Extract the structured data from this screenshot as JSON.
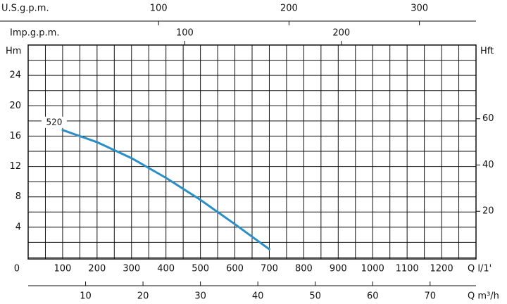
{
  "chart_data": {
    "type": "line",
    "x_label": "Q l/1'",
    "y_label": "Hm",
    "y2_label": "Hft",
    "xlim": [
      0,
      1300
    ],
    "xticks": [
      0,
      100,
      200,
      300,
      400,
      500,
      600,
      700,
      800,
      900,
      1000,
      1100,
      1200
    ],
    "xgrid": [
      0,
      50,
      100,
      150,
      200,
      250,
      300,
      350,
      400,
      450,
      500,
      550,
      600,
      650,
      700,
      750,
      800,
      850,
      900,
      950,
      1000,
      1050,
      1100,
      1150,
      1200,
      1250,
      1300
    ],
    "ylim": [
      0,
      28
    ],
    "yticks": [
      4,
      8,
      12,
      16,
      20,
      24
    ],
    "ygrid": [
      0,
      2,
      4,
      6,
      8,
      10,
      12,
      14,
      16,
      18,
      20,
      22,
      24,
      26,
      28
    ],
    "y2lim": [
      0,
      91.86
    ],
    "y2ticks": [
      20,
      40,
      60
    ],
    "series": [
      {
        "name": "520",
        "color": "#2a8fc6",
        "x": [
          100,
          200,
          300,
          400,
          500,
          600,
          700
        ],
        "values": [
          16.8,
          15.2,
          13.1,
          10.5,
          7.6,
          4.4,
          1.1
        ]
      }
    ],
    "top_axes": [
      {
        "label": "U.S.g.p.m.",
        "xlim": [
          0,
          343.4
        ],
        "xticks": [
          100,
          200,
          300
        ]
      },
      {
        "label": "Imp.g.p.m.",
        "xlim": [
          0,
          286
        ],
        "xticks": [
          100,
          200
        ]
      }
    ],
    "bottom_axis": {
      "label": "Q m³/h",
      "xlim": [
        0,
        78
      ],
      "xticks": [
        10,
        20,
        30,
        40,
        50,
        60,
        70
      ]
    }
  }
}
